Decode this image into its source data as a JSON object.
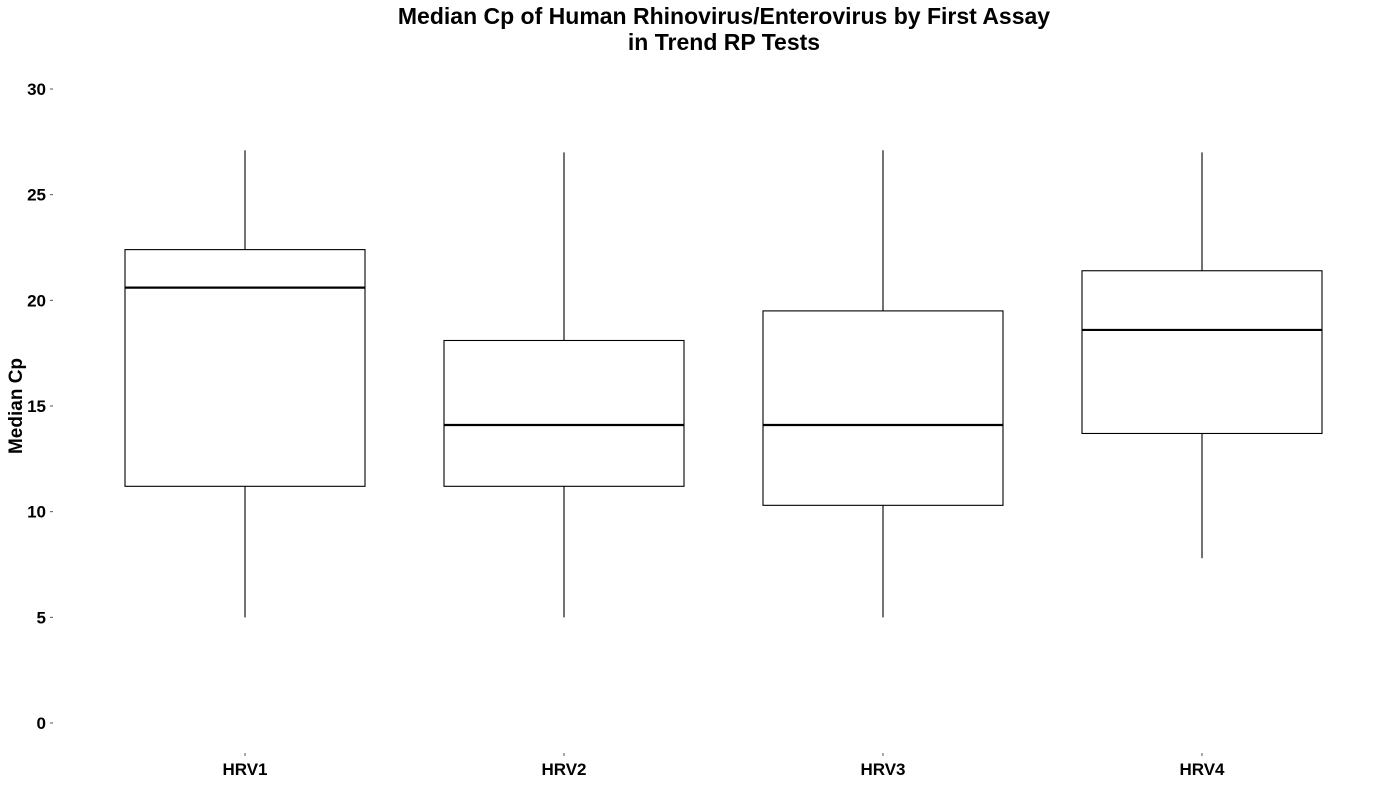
{
  "chart_data": {
    "type": "box",
    "title": "Median Cp of Human Rhinovirus/Enterovirus by First Assay",
    "subtitle": "in Trend RP Tests",
    "xlabel": "",
    "ylabel": "Median Cp",
    "ylim": [
      0,
      30
    ],
    "yticks": [
      "0",
      "5",
      "10",
      "15",
      "20",
      "25",
      "30"
    ],
    "grid": false,
    "categories": [
      "HRV1",
      "HRV2",
      "HRV3",
      "HRV4"
    ],
    "boxes": [
      {
        "category": "HRV1",
        "min": 5.0,
        "q1": 11.2,
        "median": 20.6,
        "q3": 22.4,
        "max": 27.1
      },
      {
        "category": "HRV2",
        "min": 5.0,
        "q1": 11.2,
        "median": 14.1,
        "q3": 18.1,
        "max": 27.0
      },
      {
        "category": "HRV3",
        "min": 5.0,
        "q1": 10.3,
        "median": 14.1,
        "q3": 19.5,
        "max": 27.1
      },
      {
        "category": "HRV4",
        "min": 7.8,
        "q1": 13.7,
        "median": 18.6,
        "q3": 21.4,
        "max": 27.0
      }
    ],
    "colors": {
      "box_fill": "#ffffff",
      "stroke": "#000000",
      "background": "#ffffff"
    }
  }
}
